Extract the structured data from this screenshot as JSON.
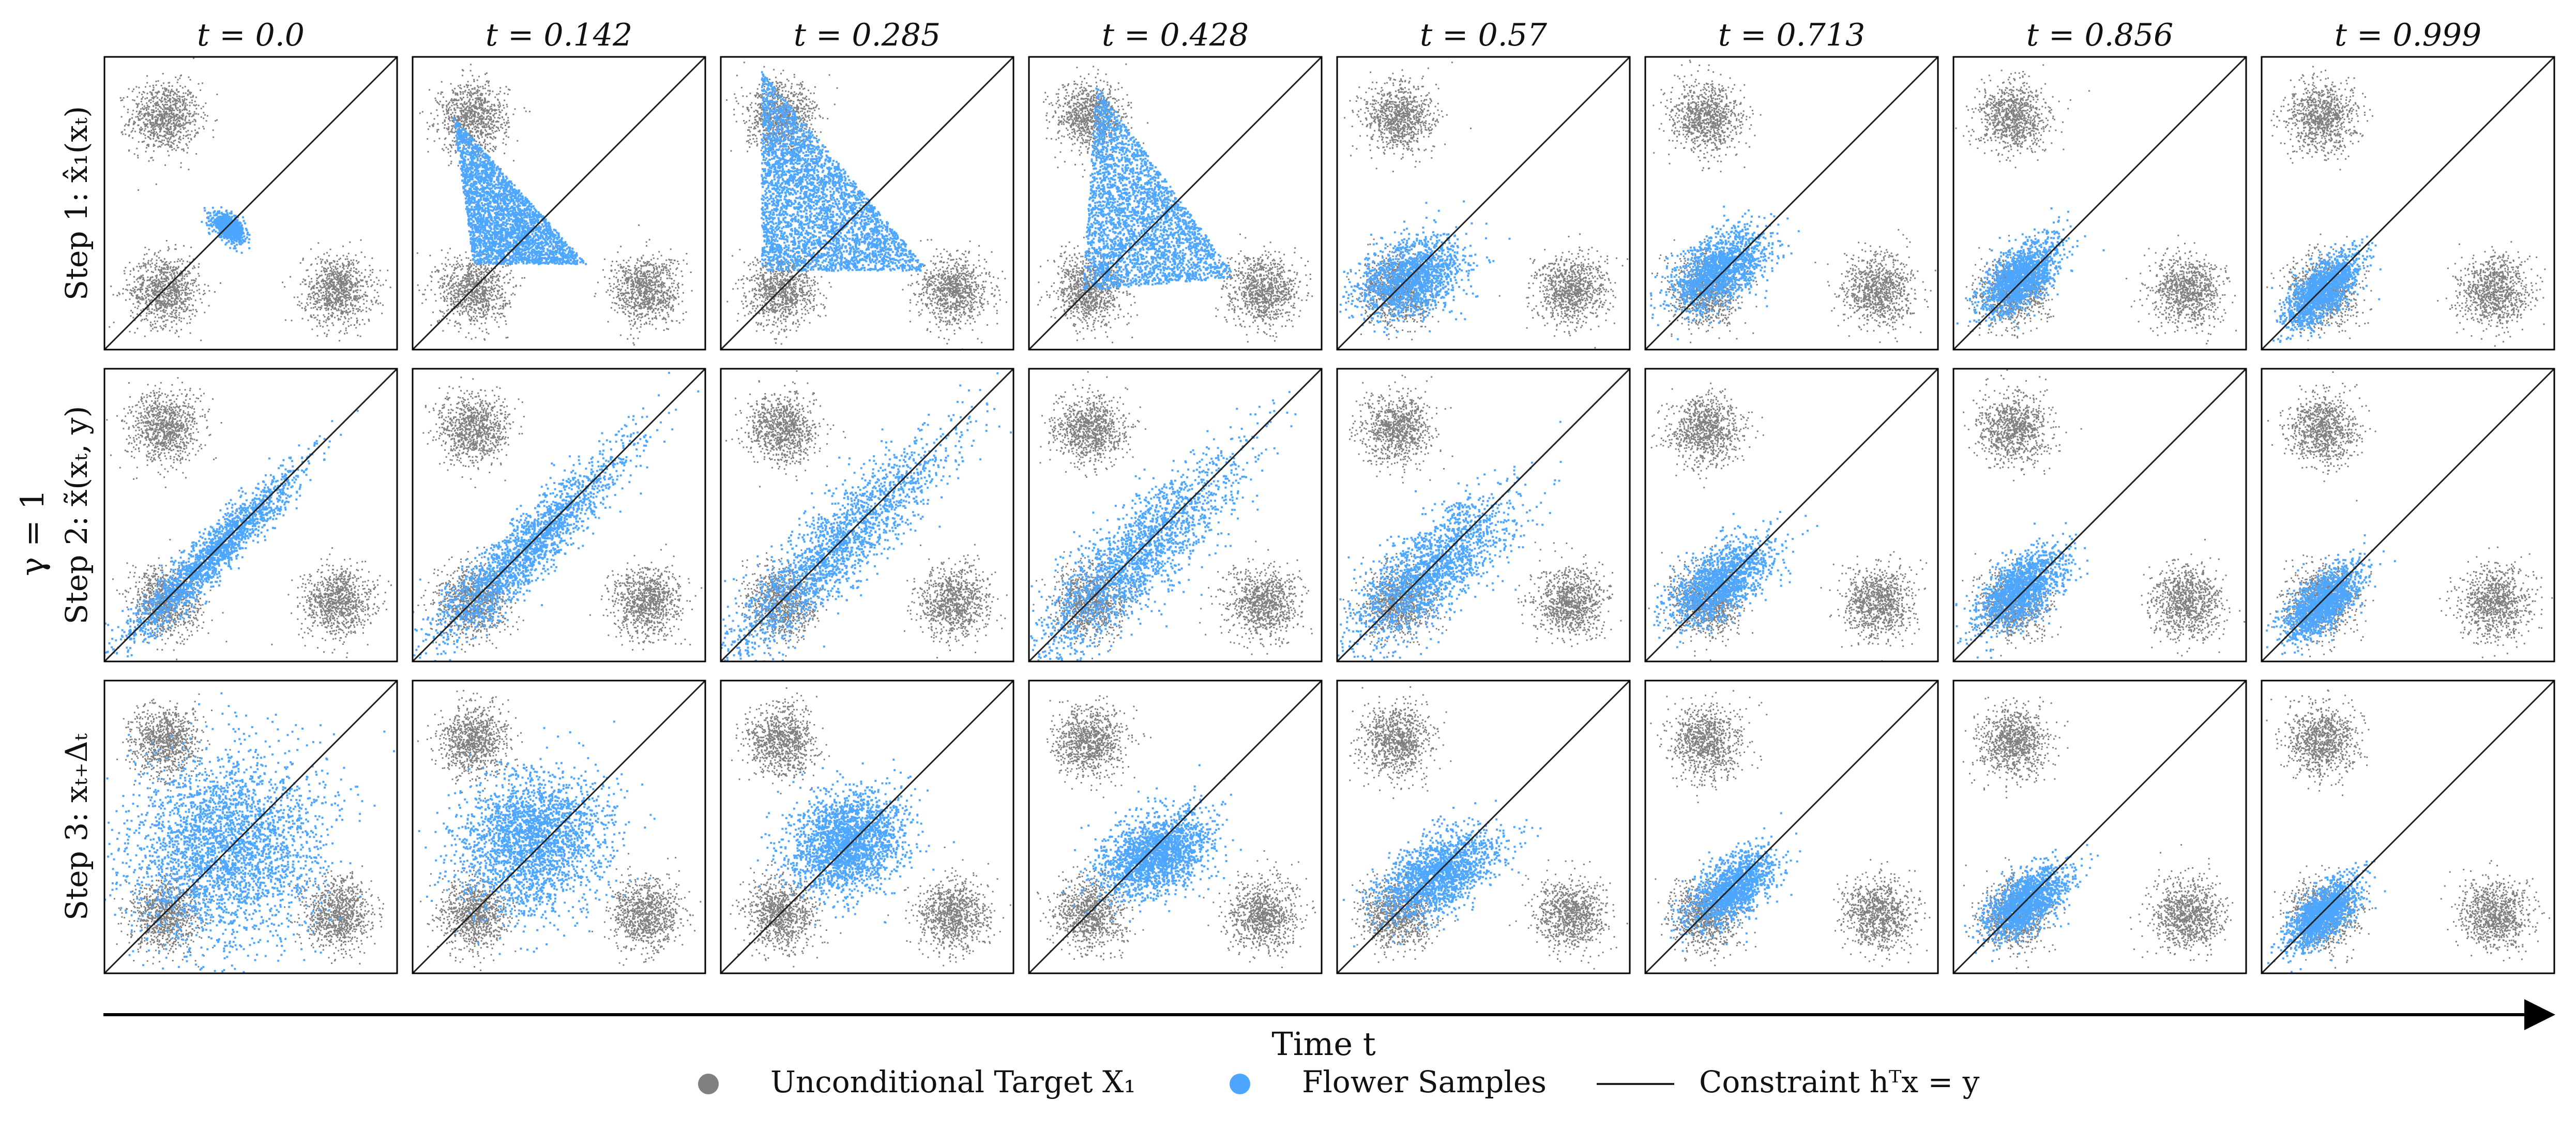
{
  "chart_data": {
    "type": "scatter",
    "title": "",
    "columns": [
      "t = 0.0",
      "t = 0.142",
      "t = 0.285",
      "t = 0.428",
      "t = 0.57",
      "t = 0.713",
      "t = 0.856",
      "t = 0.999"
    ],
    "rows": [
      "Step 1: x̂₁(xₜ)",
      "Step 2: x̃(xₜ, y)",
      "Step 3: xₜ₊Δₜ"
    ],
    "group_label": "γ = 1",
    "xlabel": "Time t",
    "axis_range": {
      "x": [
        -2.2,
        2.2
      ],
      "y": [
        -2.2,
        2.2
      ]
    },
    "target_clusters": [
      {
        "name": "top-left",
        "center": [
          -1.3,
          1.3
        ],
        "std": 0.26
      },
      {
        "name": "bottom-left",
        "center": [
          -1.3,
          -1.3
        ],
        "std": 0.26
      },
      {
        "name": "bottom-right",
        "center": [
          1.3,
          -1.3
        ],
        "std": 0.26
      }
    ],
    "constraint_line": {
      "slope": 1,
      "intercept": 0
    },
    "sample_shapes": [
      [
        {
          "kind": "blob",
          "center": [
            -0.35,
            -0.35
          ],
          "sx": 0.12,
          "sy": 0.1,
          "rho": -0.5,
          "n": 800
        },
        {
          "kind": "triangle",
          "pts": [
            [
              -1.6,
              1.3
            ],
            [
              -1.3,
              -0.9
            ],
            [
              0.4,
              -0.9
            ]
          ],
          "n": 3000
        },
        {
          "kind": "triangle",
          "pts": [
            [
              -1.6,
              2.0
            ],
            [
              -1.6,
              -1.0
            ],
            [
              0.9,
              -1.0
            ]
          ],
          "n": 3500
        },
        {
          "kind": "triangle",
          "pts": [
            [
              -1.2,
              1.8
            ],
            [
              -1.4,
              -1.3
            ],
            [
              0.9,
              -1.1
            ]
          ],
          "n": 3000
        },
        {
          "kind": "blob",
          "center": [
            -1.1,
            -1.1
          ],
          "sx": 0.4,
          "sy": 0.3,
          "rho": 0.3,
          "n": 1500
        },
        {
          "kind": "blob",
          "center": [
            -1.1,
            -1.0
          ],
          "sx": 0.35,
          "sy": 0.3,
          "rho": 0.5,
          "n": 1500
        },
        {
          "kind": "blob",
          "center": [
            -1.2,
            -1.1
          ],
          "sx": 0.3,
          "sy": 0.28,
          "rho": 0.6,
          "n": 1500
        },
        {
          "kind": "blob",
          "center": [
            -1.3,
            -1.3
          ],
          "sx": 0.28,
          "sy": 0.28,
          "rho": 0.7,
          "n": 1500
        }
      ],
      [
        {
          "kind": "blob",
          "center": [
            -0.6,
            -0.6
          ],
          "sx": 0.65,
          "sy": 0.65,
          "rho": 0.95,
          "n": 2000
        },
        {
          "kind": "blob",
          "center": [
            -0.5,
            -0.5
          ],
          "sx": 0.75,
          "sy": 0.75,
          "rho": 0.93,
          "n": 2000
        },
        {
          "kind": "blob",
          "center": [
            -0.5,
            -0.5
          ],
          "sx": 0.85,
          "sy": 0.85,
          "rho": 0.9,
          "n": 2000
        },
        {
          "kind": "blob",
          "center": [
            -0.6,
            -0.6
          ],
          "sx": 0.8,
          "sy": 0.8,
          "rho": 0.85,
          "n": 2000
        },
        {
          "kind": "blob",
          "center": [
            -0.8,
            -0.8
          ],
          "sx": 0.6,
          "sy": 0.55,
          "rho": 0.75,
          "n": 1800
        },
        {
          "kind": "blob",
          "center": [
            -1.1,
            -1.0
          ],
          "sx": 0.38,
          "sy": 0.32,
          "rho": 0.6,
          "n": 1500
        },
        {
          "kind": "blob",
          "center": [
            -1.2,
            -1.1
          ],
          "sx": 0.32,
          "sy": 0.3,
          "rho": 0.6,
          "n": 1500
        },
        {
          "kind": "blob",
          "center": [
            -1.3,
            -1.3
          ],
          "sx": 0.28,
          "sy": 0.28,
          "rho": 0.65,
          "n": 1500
        }
      ],
      [
        {
          "kind": "blob",
          "center": [
            -0.4,
            -0.3
          ],
          "sx": 0.72,
          "sy": 0.72,
          "rho": 0.1,
          "n": 3000
        },
        {
          "kind": "blob",
          "center": [
            -0.4,
            -0.2
          ],
          "sx": 0.55,
          "sy": 0.5,
          "rho": 0.1,
          "n": 2500
        },
        {
          "kind": "blob",
          "center": [
            -0.3,
            -0.2
          ],
          "sx": 0.42,
          "sy": 0.38,
          "rho": 0.2,
          "n": 2200
        },
        {
          "kind": "blob",
          "center": [
            -0.3,
            -0.4
          ],
          "sx": 0.42,
          "sy": 0.32,
          "rho": 0.4,
          "n": 2000
        },
        {
          "kind": "blob",
          "center": [
            -0.7,
            -0.7
          ],
          "sx": 0.45,
          "sy": 0.32,
          "rho": 0.5,
          "n": 1800
        },
        {
          "kind": "blob",
          "center": [
            -0.9,
            -0.9
          ],
          "sx": 0.32,
          "sy": 0.28,
          "rho": 0.55,
          "n": 1500
        },
        {
          "kind": "blob",
          "center": [
            -1.1,
            -1.1
          ],
          "sx": 0.3,
          "sy": 0.26,
          "rho": 0.6,
          "n": 1500
        },
        {
          "kind": "blob",
          "center": [
            -1.3,
            -1.3
          ],
          "sx": 0.26,
          "sy": 0.26,
          "rho": 0.65,
          "n": 1500
        }
      ]
    ],
    "legend": [
      {
        "label": "Unconditional Target X₁",
        "type": "marker",
        "color": "#808080"
      },
      {
        "label": "Flower Samples",
        "type": "marker",
        "color": "#4da6ff"
      },
      {
        "label": "Constraint hᵀx = y",
        "type": "line",
        "color": "#222222"
      }
    ],
    "legend_position": "bottom-center",
    "grid": false
  }
}
